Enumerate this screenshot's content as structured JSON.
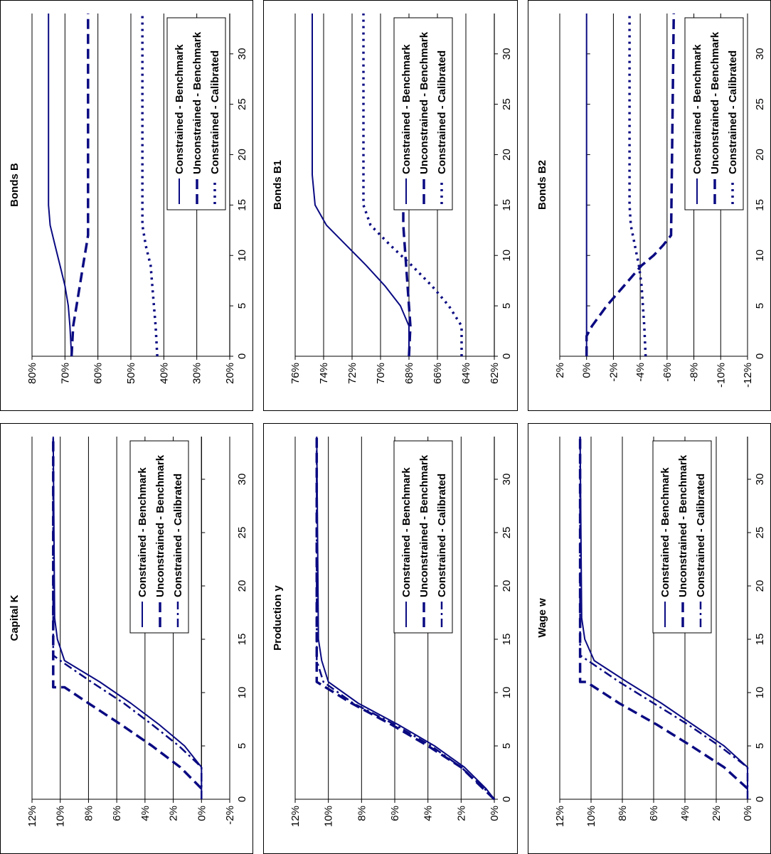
{
  "page": {
    "orientation": "rotated-90-counterclockwise"
  },
  "colors": {
    "series": "#0a0a82",
    "grid": "#000000"
  },
  "legend_labels": [
    "Constrained - Benchmark",
    "Unconstrained - Benchmark",
    "Constrained - Calibrated"
  ],
  "chart_data": [
    {
      "id": "capital",
      "type": "line",
      "title": "Capital K",
      "xlim": [
        0,
        34
      ],
      "ylim": [
        -0.02,
        0.12
      ],
      "x_ticks": [
        0,
        5,
        10,
        15,
        20,
        25,
        30
      ],
      "x_tick_labels": [
        "0",
        "5",
        "10",
        "15",
        "20",
        "25",
        "30"
      ],
      "y_ticks": [
        -0.02,
        0,
        0.02,
        0.04,
        0.06,
        0.08,
        0.1,
        0.12
      ],
      "y_tick_labels": [
        "-2%",
        "0%",
        "2%",
        "4%",
        "6%",
        "8%",
        "10%",
        "12%"
      ],
      "gridlines": "horizontal",
      "legend_placement": "right-middle",
      "series": [
        {
          "name": "Constrained - Benchmark",
          "style": "solid",
          "x": [
            0,
            3,
            5,
            7,
            9,
            11,
            13,
            15,
            17,
            34
          ],
          "y": [
            0.0,
            0.0,
            0.012,
            0.03,
            0.05,
            0.072,
            0.097,
            0.102,
            0.104,
            0.105
          ]
        },
        {
          "name": "Unconstrained - Benchmark",
          "style": "dash",
          "x": [
            1,
            3,
            5,
            7,
            9,
            10.5,
            10.5,
            34
          ],
          "y": [
            0.0,
            0.015,
            0.035,
            0.057,
            0.08,
            0.097,
            0.105,
            0.105
          ]
        },
        {
          "name": "Constrained - Calibrated",
          "style": "dashdot",
          "x": [
            0,
            3,
            5,
            7,
            9,
            11,
            13,
            13.5,
            34
          ],
          "y": [
            0.0,
            0.0,
            0.016,
            0.035,
            0.055,
            0.078,
            0.1,
            0.105,
            0.105
          ]
        }
      ]
    },
    {
      "id": "production",
      "type": "line",
      "title": "Production y",
      "xlim": [
        0,
        34
      ],
      "ylim": [
        0,
        0.12
      ],
      "x_ticks": [
        0,
        5,
        10,
        15,
        20,
        25,
        30
      ],
      "x_tick_labels": [
        "0",
        "5",
        "10",
        "15",
        "20",
        "25",
        "30"
      ],
      "y_ticks": [
        0,
        0.02,
        0.04,
        0.06,
        0.08,
        0.1,
        0.12
      ],
      "y_tick_labels": [
        "0%",
        "2%",
        "4%",
        "6%",
        "8%",
        "10%",
        "12%"
      ],
      "gridlines": "horizontal",
      "legend_placement": "right-middle",
      "series": [
        {
          "name": "Constrained - Benchmark",
          "style": "solid",
          "x": [
            0,
            1,
            3,
            5,
            7,
            9,
            11,
            13,
            15,
            34
          ],
          "y": [
            0.0,
            0.005,
            0.018,
            0.036,
            0.058,
            0.082,
            0.1,
            0.104,
            0.106,
            0.107
          ]
        },
        {
          "name": "Unconstrained - Benchmark",
          "style": "dash",
          "x": [
            0,
            3,
            5,
            7,
            9,
            11,
            11,
            34
          ],
          "y": [
            0.0,
            0.02,
            0.04,
            0.062,
            0.086,
            0.107,
            0.107,
            0.107
          ]
        },
        {
          "name": "Constrained - Calibrated",
          "style": "dashdot",
          "x": [
            0,
            1,
            3,
            5,
            7,
            9,
            11,
            13,
            34
          ],
          "y": [
            0.0,
            0.006,
            0.02,
            0.038,
            0.06,
            0.085,
            0.103,
            0.107,
            0.107
          ]
        }
      ]
    },
    {
      "id": "wage",
      "type": "line",
      "title": "Wage w",
      "xlim": [
        0,
        34
      ],
      "ylim": [
        0,
        0.12
      ],
      "x_ticks": [
        0,
        5,
        10,
        15,
        20,
        25,
        30
      ],
      "x_tick_labels": [
        "0",
        "5",
        "10",
        "15",
        "20",
        "25",
        "30"
      ],
      "y_ticks": [
        0,
        0.02,
        0.04,
        0.06,
        0.08,
        0.1,
        0.12
      ],
      "y_tick_labels": [
        "0%",
        "2%",
        "4%",
        "6%",
        "8%",
        "10%",
        "12%"
      ],
      "gridlines": "horizontal",
      "legend_placement": "right-middle",
      "series": [
        {
          "name": "Constrained - Benchmark",
          "style": "solid",
          "x": [
            0,
            3,
            5,
            7,
            9,
            11,
            13,
            15,
            17,
            34
          ],
          "y": [
            0.0,
            0.0,
            0.015,
            0.035,
            0.055,
            0.077,
            0.098,
            0.104,
            0.106,
            0.107
          ]
        },
        {
          "name": "Unconstrained - Benchmark",
          "style": "dash",
          "x": [
            1,
            3,
            5,
            7,
            9,
            11,
            11,
            34
          ],
          "y": [
            0.0,
            0.015,
            0.036,
            0.058,
            0.082,
            0.103,
            0.107,
            0.107
          ]
        },
        {
          "name": "Constrained - Calibrated",
          "style": "dashdot",
          "x": [
            0,
            3,
            5,
            7,
            9,
            11,
            13,
            13.5,
            34
          ],
          "y": [
            0.0,
            0.0,
            0.018,
            0.038,
            0.06,
            0.082,
            0.102,
            0.107,
            0.107
          ]
        }
      ]
    },
    {
      "id": "bonds_b",
      "type": "line",
      "title": "Bonds B",
      "xlim": [
        0,
        34
      ],
      "ylim": [
        0.2,
        0.8
      ],
      "x_ticks": [
        0,
        5,
        10,
        15,
        20,
        25,
        30
      ],
      "x_tick_labels": [
        "0",
        "5",
        "10",
        "15",
        "20",
        "25",
        "30"
      ],
      "y_ticks": [
        0.2,
        0.3,
        0.4,
        0.5,
        0.6,
        0.7,
        0.8
      ],
      "y_tick_labels": [
        "20%",
        "30%",
        "40%",
        "50%",
        "60%",
        "70%",
        "80%"
      ],
      "gridlines": "horizontal",
      "legend_placement": "right-bottom",
      "series": [
        {
          "name": "Constrained - Benchmark",
          "style": "solid",
          "x": [
            0,
            3,
            5,
            7,
            9,
            11,
            13,
            15,
            34
          ],
          "y": [
            0.68,
            0.685,
            0.69,
            0.7,
            0.715,
            0.73,
            0.745,
            0.75,
            0.75
          ]
        },
        {
          "name": "Unconstrained - Benchmark",
          "style": "dash",
          "x": [
            0,
            3,
            5,
            7,
            9,
            11,
            12,
            34
          ],
          "y": [
            0.68,
            0.675,
            0.665,
            0.655,
            0.645,
            0.635,
            0.63,
            0.63
          ]
        },
        {
          "name": "Constrained - Calibrated",
          "style": "dot",
          "x": [
            0,
            3,
            5,
            7,
            9,
            11,
            13,
            15,
            34
          ],
          "y": [
            0.42,
            0.425,
            0.43,
            0.435,
            0.44,
            0.455,
            0.465,
            0.465,
            0.465
          ]
        }
      ]
    },
    {
      "id": "bonds_b1",
      "type": "line",
      "title": "Bonds B1",
      "xlim": [
        0,
        34
      ],
      "ylim": [
        0.62,
        0.76
      ],
      "x_ticks": [
        0,
        5,
        10,
        15,
        20,
        25,
        30
      ],
      "x_tick_labels": [
        "0",
        "5",
        "10",
        "15",
        "20",
        "25",
        "30"
      ],
      "y_ticks": [
        0.62,
        0.64,
        0.66,
        0.68,
        0.7,
        0.72,
        0.74,
        0.76
      ],
      "y_tick_labels": [
        "62%",
        "64%",
        "66%",
        "68%",
        "70%",
        "72%",
        "74%",
        "76%"
      ],
      "gridlines": "horizontal",
      "legend_placement": "right-middle",
      "series": [
        {
          "name": "Constrained - Benchmark",
          "style": "solid",
          "x": [
            0,
            3,
            5,
            7,
            9,
            11,
            13,
            15,
            18,
            34
          ],
          "y": [
            0.68,
            0.68,
            0.686,
            0.697,
            0.71,
            0.724,
            0.738,
            0.746,
            0.748,
            0.748
          ]
        },
        {
          "name": "Unconstrained - Benchmark",
          "style": "dash",
          "x": [
            0,
            3,
            5,
            7,
            9,
            11,
            13,
            34
          ],
          "y": [
            0.68,
            0.679,
            0.68,
            0.681,
            0.682,
            0.683,
            0.684,
            0.684
          ]
        },
        {
          "name": "Constrained - Calibrated",
          "style": "dot",
          "x": [
            0,
            3,
            5,
            7,
            9,
            11,
            13,
            15,
            34
          ],
          "y": [
            0.643,
            0.643,
            0.652,
            0.664,
            0.678,
            0.693,
            0.707,
            0.712,
            0.712
          ]
        }
      ]
    },
    {
      "id": "bonds_b2",
      "type": "line",
      "title": "Bonds B2",
      "xlim": [
        0,
        34
      ],
      "ylim": [
        -0.12,
        0.02
      ],
      "x_ticks": [
        0,
        5,
        10,
        15,
        20,
        25,
        30
      ],
      "x_tick_labels": [
        "0",
        "5",
        "10",
        "15",
        "20",
        "25",
        "30"
      ],
      "y_ticks": [
        -0.12,
        -0.1,
        -0.08,
        -0.06,
        -0.04,
        -0.02,
        0,
        0.02
      ],
      "y_tick_labels": [
        "-12%",
        "-10%",
        "-8%",
        "-6%",
        "-4%",
        "-2%",
        "0%",
        "2%"
      ],
      "gridlines": "horizontal",
      "legend_placement": "right-bottom",
      "series": [
        {
          "name": "Constrained - Benchmark",
          "style": "solid",
          "x": [
            0,
            34
          ],
          "y": [
            0.0,
            0.0
          ]
        },
        {
          "name": "Unconstrained - Benchmark",
          "style": "dash",
          "x": [
            0,
            2,
            3,
            5,
            7,
            9,
            10,
            11,
            12,
            34
          ],
          "y": [
            0.0,
            0.0,
            -0.004,
            -0.015,
            -0.028,
            -0.041,
            -0.05,
            -0.057,
            -0.063,
            -0.065
          ]
        },
        {
          "name": "Constrained - Calibrated",
          "style": "dot",
          "x": [
            0,
            3,
            5,
            7,
            9,
            11,
            13,
            15,
            34
          ],
          "y": [
            -0.044,
            -0.043,
            -0.042,
            -0.041,
            -0.039,
            -0.036,
            -0.033,
            -0.032,
            -0.032
          ]
        }
      ]
    }
  ]
}
